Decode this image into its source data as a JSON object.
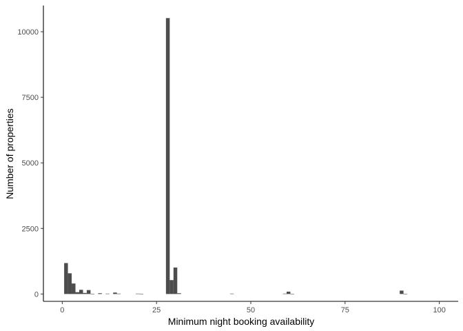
{
  "chart_data": {
    "type": "bar",
    "title": "",
    "xlabel": "Minimum night booking availability",
    "ylabel": "Number of properties",
    "xlim": [
      -5,
      105
    ],
    "ylim": [
      -280,
      11000
    ],
    "x_ticks": [
      0,
      25,
      50,
      75,
      100
    ],
    "y_ticks": [
      0,
      2500,
      5000,
      7500,
      10000
    ],
    "x_tick_labels": [
      "0",
      "25",
      "50",
      "75",
      "100"
    ],
    "y_tick_labels": [
      "0",
      "2500",
      "5000",
      "7500",
      "10000"
    ],
    "bin_width": 1,
    "grid": false,
    "legend": "none",
    "bar_color": "#4d4d4d",
    "x": [
      1,
      2,
      3,
      4,
      5,
      6,
      7,
      8,
      10,
      12,
      14,
      15,
      20,
      21,
      28,
      29,
      30,
      31,
      45,
      59,
      60,
      61,
      90,
      91
    ],
    "values": [
      1180,
      790,
      400,
      70,
      160,
      40,
      150,
      10,
      30,
      15,
      55,
      15,
      15,
      10,
      10520,
      530,
      1010,
      30,
      15,
      15,
      90,
      10,
      130,
      10
    ]
  }
}
